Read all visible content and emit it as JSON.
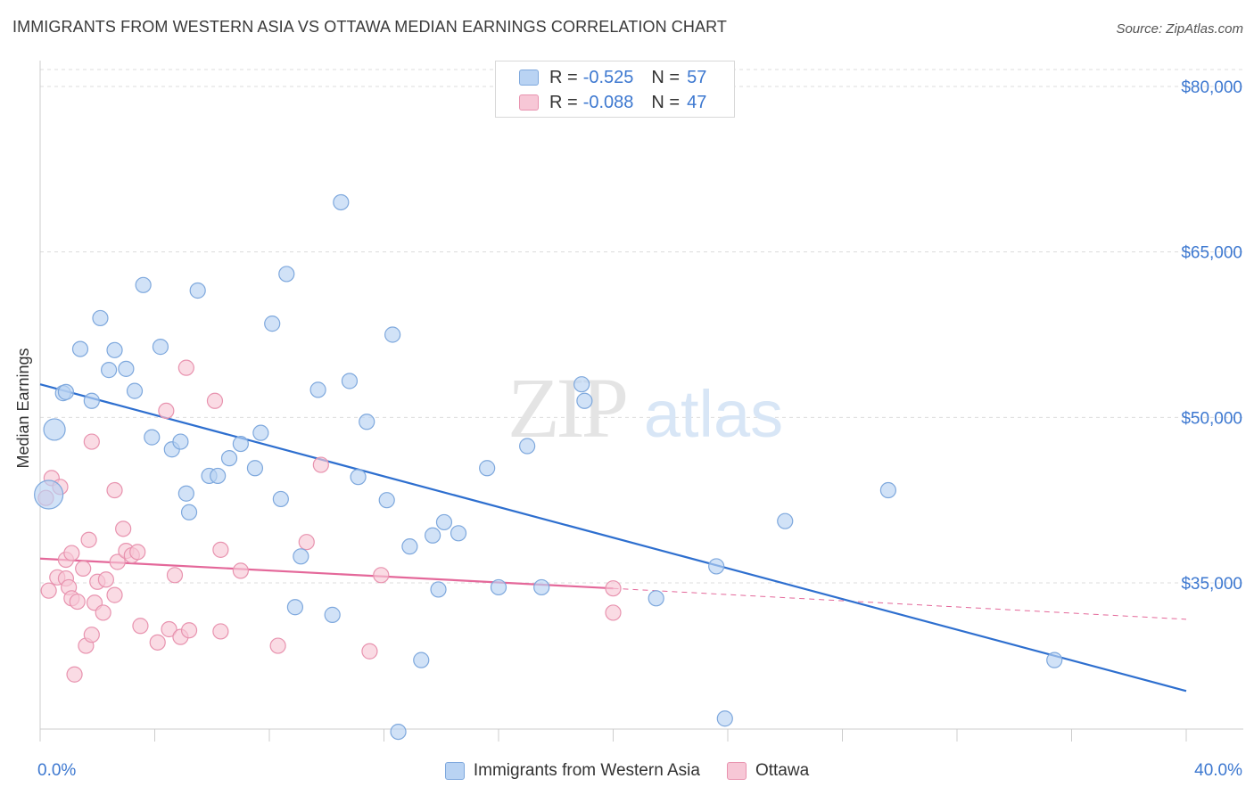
{
  "title": "IMMIGRANTS FROM WESTERN ASIA VS OTTAWA MEDIAN EARNINGS CORRELATION CHART",
  "source": "Source: ZipAtlas.com",
  "watermark": {
    "zip": "ZIP",
    "atlas": "atlas"
  },
  "legend": {
    "series1": {
      "r_label": "R =",
      "r_value": "-0.525",
      "n_label": "N =",
      "n_value": "57"
    },
    "series2": {
      "r_label": "R =",
      "r_value": "-0.088",
      "n_label": "N =",
      "n_value": "47"
    }
  },
  "chart_data": {
    "type": "scatter",
    "title": "IMMIGRANTS FROM WESTERN ASIA VS OTTAWA MEDIAN EARNINGS CORRELATION CHART",
    "xlabel": "",
    "ylabel": "Median Earnings",
    "xlim": [
      0,
      40
    ],
    "ylim": [
      20000,
      82000
    ],
    "x_tick_labels": [
      "0.0%",
      "40.0%"
    ],
    "y_ticks": [
      35000,
      50000,
      65000,
      80000
    ],
    "y_tick_labels": [
      "$35,000",
      "$50,000",
      "$65,000",
      "$80,000"
    ],
    "grid": true,
    "colors": {
      "blue_fill": "#b9d3f3",
      "blue_stroke": "#7ea8dd",
      "blue_line": "#2e6fcf",
      "pink_fill": "#f7c7d6",
      "pink_stroke": "#e893af",
      "pink_line": "#e4689a",
      "tick_text": "#3d78d0"
    },
    "series": [
      {
        "name": "Immigrants from Western Asia",
        "r": -0.525,
        "n": 57,
        "trend": {
          "x0": 0,
          "y0": 53000,
          "x1": 40,
          "y1": 25200
        },
        "points": [
          [
            0.3,
            43000,
            "l"
          ],
          [
            0.5,
            48900,
            "m"
          ],
          [
            0.8,
            52200
          ],
          [
            0.9,
            52300
          ],
          [
            1.4,
            56200
          ],
          [
            1.8,
            51500
          ],
          [
            2.1,
            59000
          ],
          [
            2.4,
            54300
          ],
          [
            2.6,
            56100
          ],
          [
            3.0,
            54400
          ],
          [
            3.3,
            52400
          ],
          [
            3.6,
            62000
          ],
          [
            3.9,
            48200
          ],
          [
            4.2,
            56400
          ],
          [
            4.6,
            47100
          ],
          [
            4.9,
            47800
          ],
          [
            5.1,
            43100
          ],
          [
            5.2,
            41400
          ],
          [
            5.5,
            61500
          ],
          [
            5.9,
            44700
          ],
          [
            6.2,
            44700
          ],
          [
            6.6,
            46300
          ],
          [
            7.0,
            47600
          ],
          [
            7.5,
            45400
          ],
          [
            7.7,
            48600
          ],
          [
            8.1,
            58500
          ],
          [
            8.4,
            42600
          ],
          [
            8.6,
            63000
          ],
          [
            9.1,
            37400
          ],
          [
            8.9,
            32800
          ],
          [
            9.7,
            52500
          ],
          [
            10.2,
            32100
          ],
          [
            10.5,
            69500
          ],
          [
            10.8,
            53300
          ],
          [
            11.1,
            44600
          ],
          [
            11.4,
            49600
          ],
          [
            12.1,
            42500
          ],
          [
            12.3,
            57500
          ],
          [
            12.5,
            21500
          ],
          [
            12.9,
            38300
          ],
          [
            13.3,
            28000
          ],
          [
            13.7,
            39300
          ],
          [
            13.9,
            34400
          ],
          [
            14.1,
            40500
          ],
          [
            14.6,
            39500
          ],
          [
            15.6,
            45400
          ],
          [
            16.0,
            34600
          ],
          [
            17.0,
            47400
          ],
          [
            17.5,
            34600
          ],
          [
            18.9,
            53000
          ],
          [
            19.0,
            51500
          ],
          [
            21.5,
            33600
          ],
          [
            23.6,
            36500
          ],
          [
            23.9,
            22700
          ],
          [
            26.0,
            40600
          ],
          [
            29.6,
            43400
          ],
          [
            35.4,
            28000
          ]
        ]
      },
      {
        "name": "Ottawa",
        "r": -0.088,
        "n": 47,
        "trend": {
          "x0": 0,
          "y0": 37200,
          "x1": 20,
          "y1": 34500
        },
        "trend_ext": {
          "x0": 20,
          "y0": 34500,
          "x1": 40,
          "y1": 31700
        },
        "points": [
          [
            0.2,
            42700
          ],
          [
            0.3,
            34300
          ],
          [
            0.4,
            44500
          ],
          [
            0.6,
            35500
          ],
          [
            0.7,
            43700
          ],
          [
            0.9,
            37100
          ],
          [
            0.9,
            35400
          ],
          [
            1.0,
            34600
          ],
          [
            1.1,
            37700
          ],
          [
            1.1,
            33600
          ],
          [
            1.2,
            26700
          ],
          [
            1.3,
            33300
          ],
          [
            1.5,
            36300
          ],
          [
            1.6,
            29300
          ],
          [
            1.7,
            38900
          ],
          [
            1.8,
            30300
          ],
          [
            1.8,
            47800
          ],
          [
            1.9,
            33200
          ],
          [
            2.0,
            35100
          ],
          [
            2.2,
            32300
          ],
          [
            2.3,
            35300
          ],
          [
            2.6,
            33900
          ],
          [
            2.6,
            43400
          ],
          [
            2.7,
            36900
          ],
          [
            2.9,
            39900
          ],
          [
            3.0,
            37900
          ],
          [
            3.2,
            37500
          ],
          [
            3.4,
            37800
          ],
          [
            3.5,
            31100
          ],
          [
            4.1,
            29600
          ],
          [
            4.4,
            50600
          ],
          [
            4.5,
            30800
          ],
          [
            4.7,
            35700
          ],
          [
            4.9,
            30100
          ],
          [
            5.1,
            54500
          ],
          [
            5.2,
            30700
          ],
          [
            6.1,
            51500
          ],
          [
            6.3,
            38000
          ],
          [
            6.3,
            30600
          ],
          [
            7.0,
            36100
          ],
          [
            8.3,
            29300
          ],
          [
            9.3,
            38700
          ],
          [
            9.8,
            45700
          ],
          [
            11.5,
            28800
          ],
          [
            11.9,
            35700
          ],
          [
            20.0,
            32300
          ],
          [
            20.0,
            34500
          ]
        ]
      }
    ]
  }
}
